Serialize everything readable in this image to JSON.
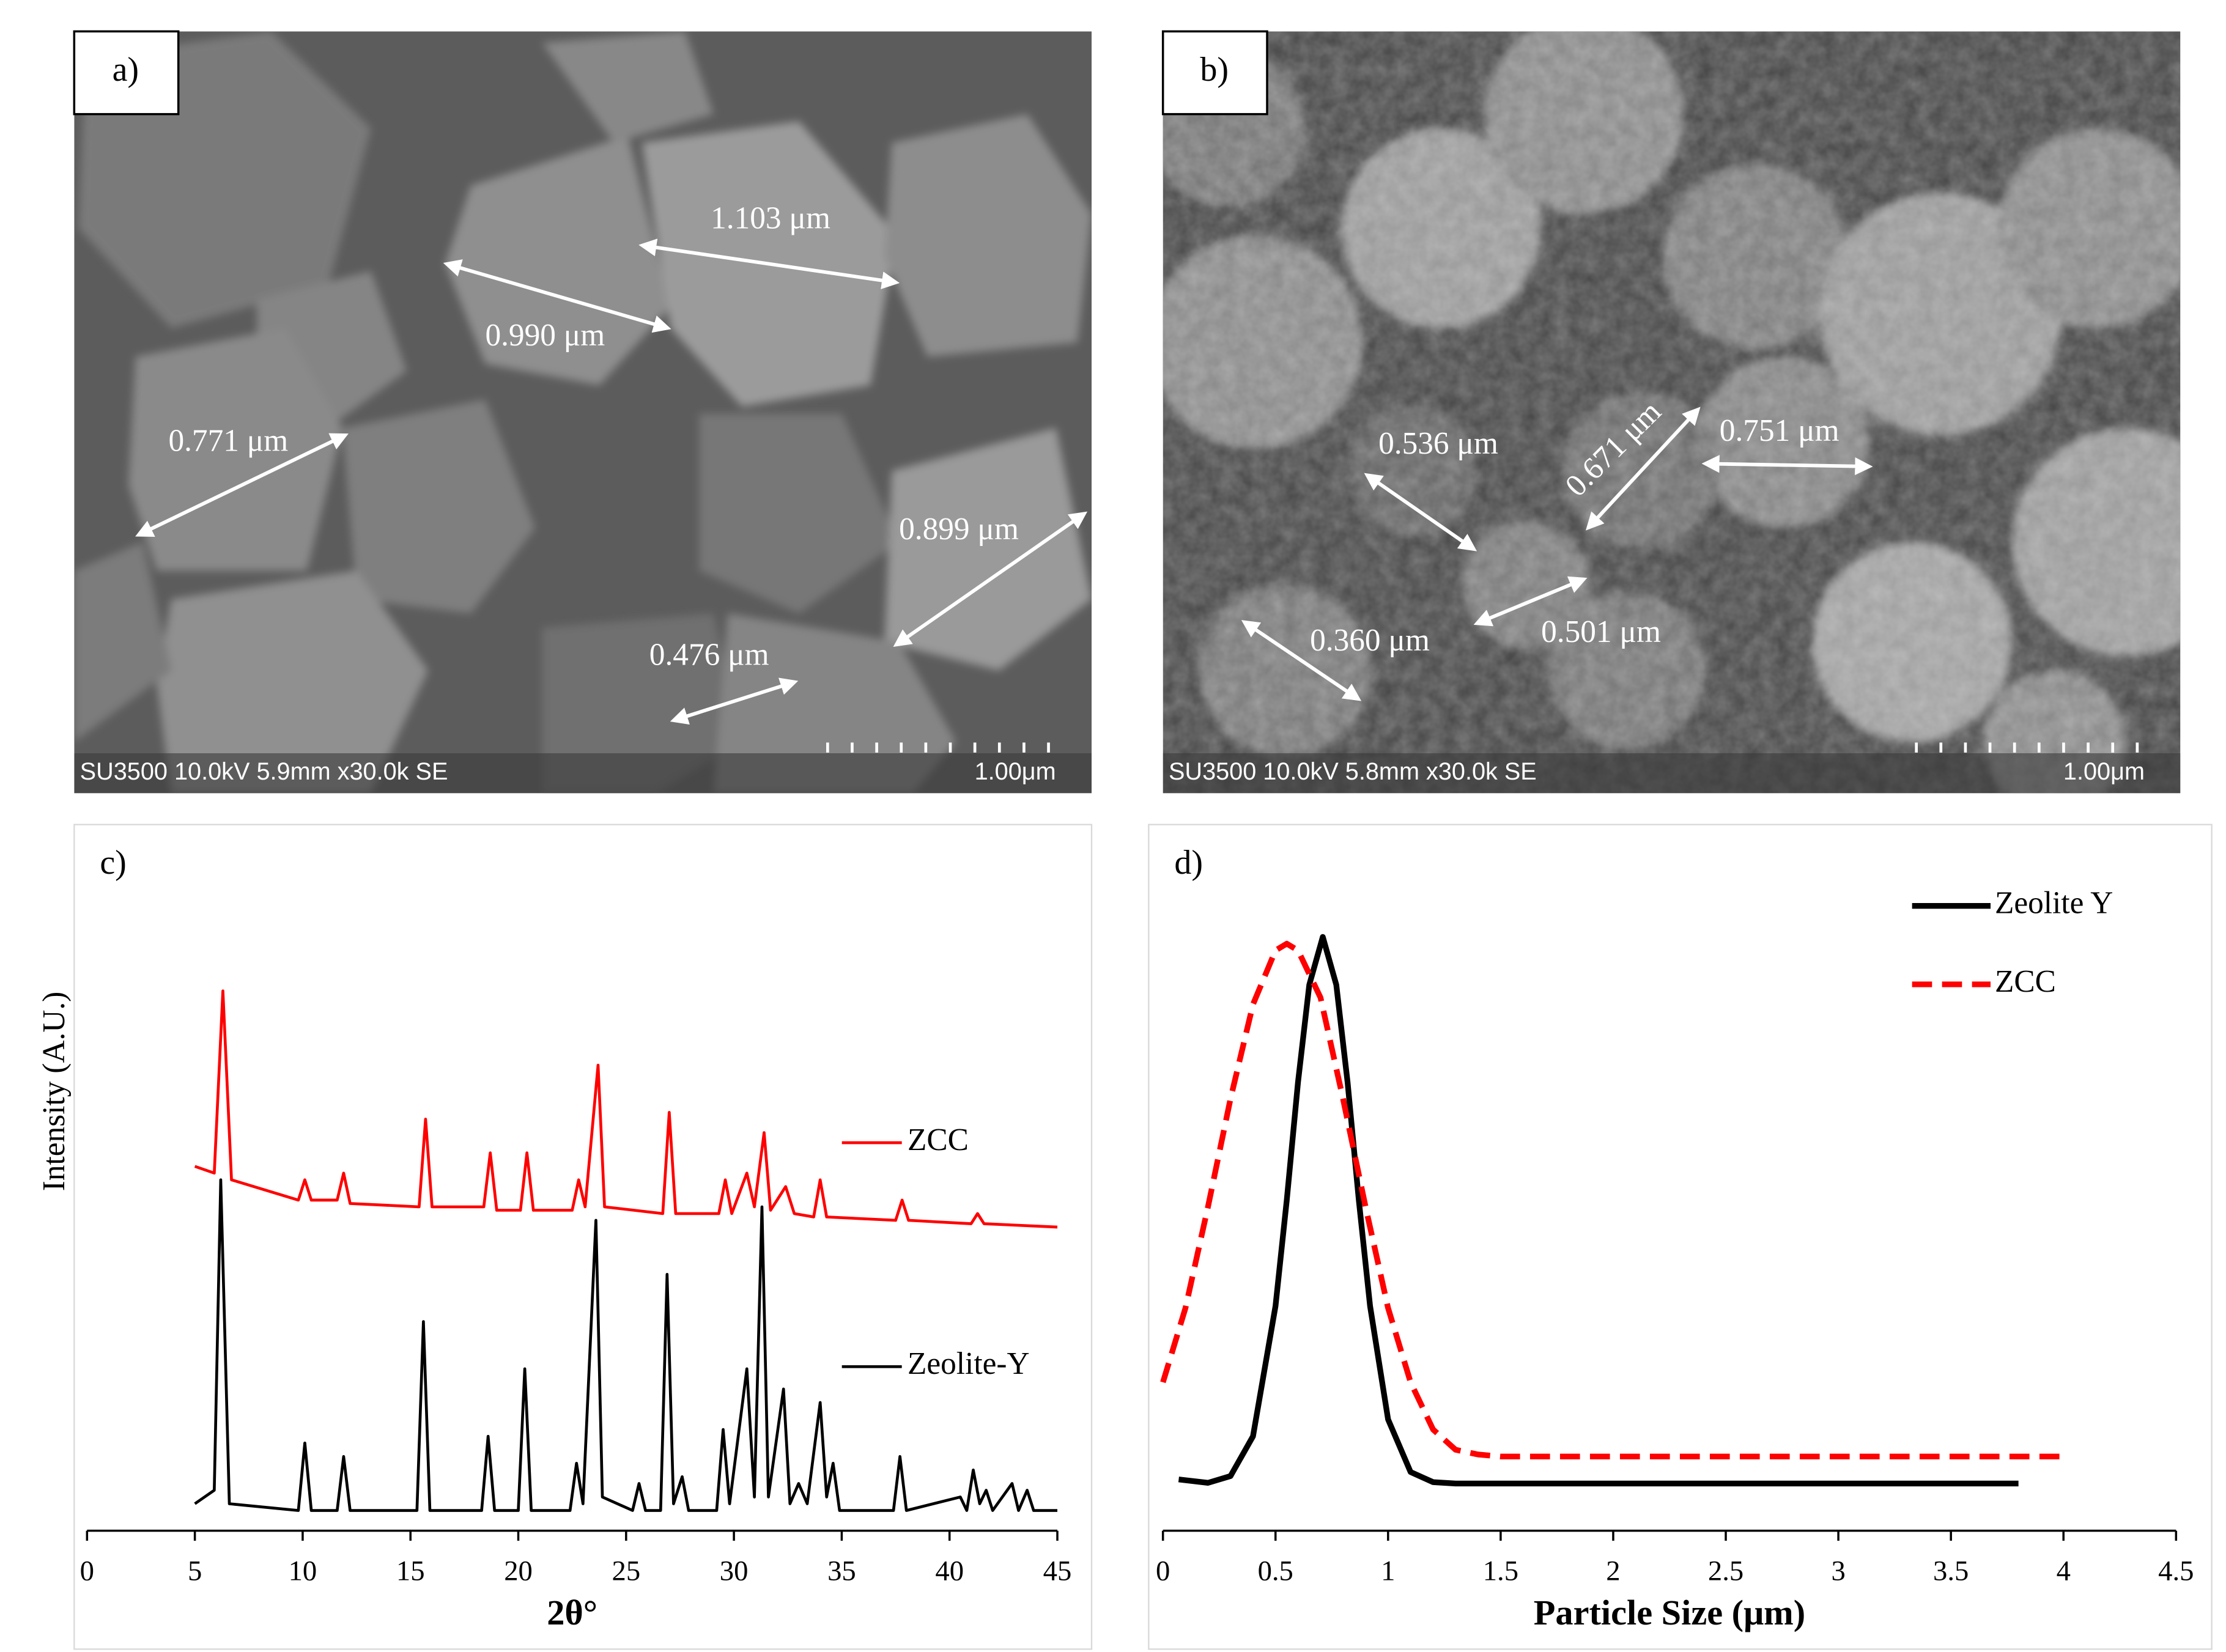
{
  "images": [
    {
      "label": "a)",
      "annotations": [
        "1.103 μm",
        "0.990 μm",
        "0.771 μm",
        "0.899 μm",
        "0.476 μm"
      ],
      "caption": "SU3500 10.0kV 5.9mm x30.0k SE",
      "scale_bar": "1.00μm"
    },
    {
      "label": "b)",
      "annotations": [
        "0.536 μm",
        "0.671 μm",
        "0.751 μm",
        "0.501 μm",
        "0.360 μm"
      ],
      "caption": "SU3500 10.0kV 5.8mm x30.0k SE",
      "scale_bar": "1.00μm"
    }
  ],
  "chart_data": [
    {
      "type": "line",
      "label": "c)",
      "x_label": "2θ°",
      "y_label": "Intensity (A.U.)",
      "xlim": [
        0,
        45
      ],
      "xticks": [
        0,
        5,
        10,
        15,
        20,
        25,
        30,
        35,
        40,
        45
      ],
      "ylim": [
        0,
        100
      ],
      "legend": "right",
      "series": [
        {
          "name": "ZCC",
          "color": "#ff0000",
          "line_style": "solid",
          "x": [
            5,
            5.9,
            6.3,
            6.7,
            9.8,
            10.1,
            10.4,
            11.6,
            11.9,
            12.2,
            15.4,
            15.7,
            16,
            18.4,
            18.7,
            19,
            20.1,
            20.4,
            20.7,
            22.5,
            22.8,
            23.1,
            23.7,
            24,
            26.7,
            27,
            27.3,
            29.3,
            29.6,
            29.9,
            30.6,
            30.95,
            31.4,
            31.7,
            32.4,
            32.8,
            33.7,
            34,
            34.3,
            37.5,
            37.8,
            38.1,
            41,
            41.3,
            41.6,
            45
          ],
          "values": [
            54,
            53,
            80,
            52,
            49,
            52,
            49,
            49,
            53,
            48.5,
            48,
            61,
            48,
            48,
            56,
            47.5,
            47.5,
            56,
            47.5,
            47.5,
            52,
            48,
            69,
            48,
            47,
            62,
            47,
            47,
            52,
            47,
            53,
            48,
            59,
            47.5,
            51,
            47,
            46.5,
            52,
            46.5,
            46,
            49,
            46,
            45.5,
            47,
            45.5,
            45
          ]
        },
        {
          "name": "Zeolite-Y",
          "color": "#000000",
          "line_style": "solid",
          "x": [
            5,
            5.9,
            6.2,
            6.6,
            9.8,
            10.1,
            10.4,
            11.6,
            11.9,
            12.2,
            15.3,
            15.6,
            15.9,
            18.3,
            18.6,
            18.9,
            20,
            20.3,
            20.6,
            22.4,
            22.7,
            23,
            23.6,
            23.9,
            25.3,
            25.6,
            25.9,
            26.6,
            26.9,
            27.2,
            27.6,
            27.9,
            29.2,
            29.5,
            29.8,
            30.6,
            30.95,
            31.3,
            31.6,
            32.3,
            32.6,
            33,
            33.4,
            34,
            34.3,
            34.6,
            34.9,
            37.4,
            37.7,
            38,
            40.5,
            40.8,
            41.1,
            41.4,
            41.7,
            42,
            42.9,
            43.2,
            43.6,
            43.9,
            45
          ],
          "values": [
            4,
            6,
            52,
            4,
            3,
            13,
            3,
            3,
            11,
            3,
            3,
            31,
            3,
            3,
            14,
            3,
            3,
            24,
            3,
            3,
            10,
            4,
            46,
            5,
            3,
            7,
            3,
            3,
            38,
            4,
            8,
            3,
            3,
            15,
            4,
            24,
            5,
            48,
            5,
            21,
            4,
            7,
            4,
            19,
            5,
            10,
            3,
            3,
            11,
            3,
            5,
            3,
            9,
            4,
            6,
            3,
            7,
            3,
            6,
            3,
            3
          ]
        }
      ]
    },
    {
      "type": "line",
      "label": "d)",
      "x_label": "Particle Size (μm)",
      "xlim": [
        0,
        4.5
      ],
      "xticks": [
        0,
        0.5,
        1,
        1.5,
        2,
        2.5,
        3,
        3.5,
        4,
        4.5
      ],
      "ylim": [
        0,
        100
      ],
      "legend": "upper right",
      "series": [
        {
          "name": "Zeolite Y",
          "color": "#000000",
          "line_style": "solid",
          "x": [
            0.07,
            0.2,
            0.3,
            0.4,
            0.5,
            0.55,
            0.6,
            0.65,
            0.71,
            0.77,
            0.82,
            0.87,
            0.92,
            1,
            1.1,
            1.2,
            1.3,
            1.5,
            2,
            3,
            3.8
          ],
          "values": [
            7.6,
            7.1,
            8.1,
            14,
            33.3,
            49,
            66.5,
            80.9,
            88,
            80.9,
            66.5,
            49,
            33.3,
            16.5,
            8.7,
            7.2,
            7,
            7,
            7,
            7,
            7
          ]
        },
        {
          "name": "ZCC",
          "color": "#ff0000",
          "line_style": "dashed",
          "x": [
            0,
            0.1,
            0.2,
            0.3,
            0.4,
            0.5,
            0.55,
            0.6,
            0.7,
            0.8,
            0.9,
            1,
            1.1,
            1.2,
            1.3,
            1.4,
            1.5,
            2,
            3,
            4
          ],
          "values": [
            22,
            33,
            48,
            64,
            78,
            86,
            87,
            86,
            79,
            64,
            48,
            33,
            22,
            15,
            12,
            11.3,
            11,
            11,
            11,
            11
          ]
        }
      ]
    }
  ]
}
